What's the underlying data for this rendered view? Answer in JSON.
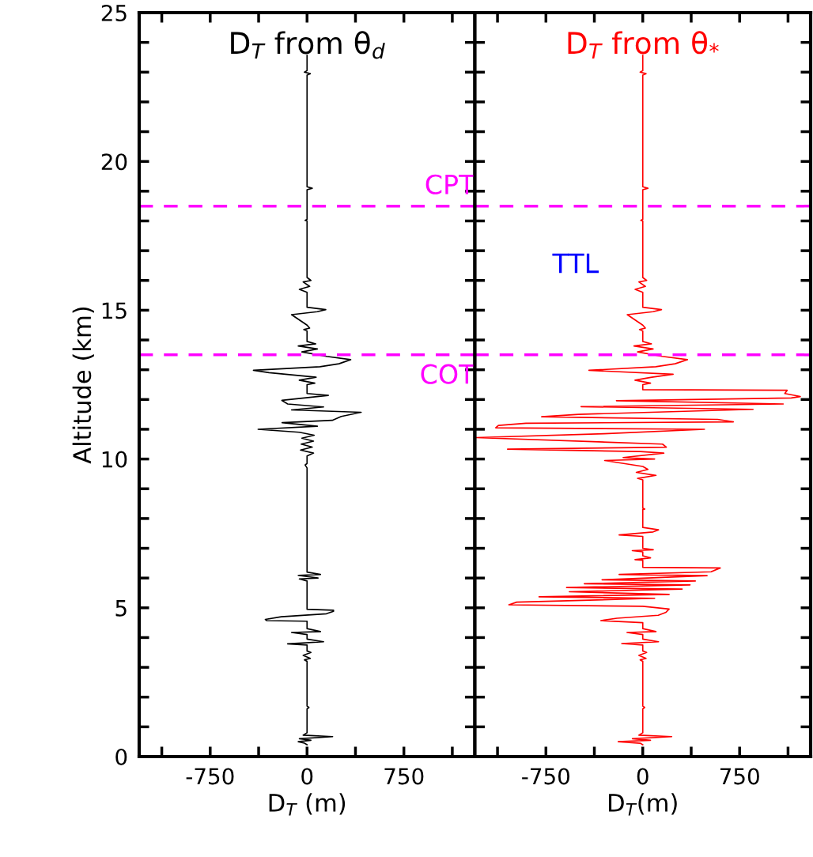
{
  "chart_data": [
    {
      "type": "line",
      "title": "D$_{T}$ from θ$_{d}$",
      "xlabel": "D$_{T}$ (m)",
      "ylabel": "Altitude (km)",
      "series": [
        {
          "color": "#000000",
          "x": [
            0,
            -20,
            -68,
            30,
            -59,
            198,
            -30,
            0,
            0,
            15,
            0,
            0,
            -20,
            25,
            -30,
            30,
            0,
            0,
            -150,
            128,
            0,
            0,
            -120,
            104,
            0,
            0,
            -311,
            -323,
            -200,
            150,
            205,
            205,
            0,
            0,
            -59,
            85,
            -68,
            104,
            0,
            0,
            -15,
            0,
            0,
            50,
            -50,
            40,
            -45,
            50,
            -40,
            55,
            -60,
            -379,
            80,
            -193,
            195,
            265,
            419,
            -120,
            128,
            -150,
            -195,
            165,
            0,
            0,
            60,
            -60,
            70,
            -294,
            -415,
            100,
            247,
            338,
            150,
            -40,
            80,
            -68,
            67,
            0,
            0,
            -25,
            20,
            0,
            -120,
            80,
            145,
            0,
            0,
            -59,
            20,
            -30,
            30,
            0,
            0,
            -15,
            0,
            0,
            40,
            0,
            0,
            25,
            -20,
            0,
            0
          ],
          "values": [
            0.4,
            0.45,
            0.5,
            0.55,
            0.6,
            0.67,
            0.72,
            0.8,
            1.6,
            1.65,
            1.7,
            3.2,
            3.25,
            3.3,
            3.4,
            3.5,
            3.55,
            3.75,
            3.79,
            3.86,
            3.95,
            4.1,
            4.17,
            4.2,
            4.3,
            4.55,
            4.57,
            4.61,
            4.7,
            4.8,
            4.88,
            4.92,
            4.95,
            5.9,
            5.97,
            6.0,
            6.09,
            6.12,
            6.2,
            9.7,
            9.8,
            9.85,
            10.1,
            10.2,
            10.3,
            10.4,
            10.5,
            10.6,
            10.7,
            10.8,
            10.9,
            11.0,
            11.1,
            11.22,
            11.3,
            11.43,
            11.57,
            11.65,
            11.75,
            11.85,
            11.97,
            12.14,
            12.2,
            12.5,
            12.55,
            12.65,
            12.75,
            12.9,
            12.98,
            13.1,
            13.2,
            13.34,
            13.45,
            13.6,
            13.7,
            13.8,
            13.87,
            13.95,
            14.3,
            14.35,
            14.4,
            14.5,
            14.85,
            14.95,
            15.02,
            15.1,
            15.6,
            15.7,
            15.8,
            15.95,
            16.0,
            16.1,
            18.0,
            18.02,
            18.05,
            19.05,
            19.1,
            19.15,
            22.9,
            22.95,
            23.0,
            23.05,
            23.56
          ]
        }
      ],
      "xlim": [
        -1300,
        1300
      ],
      "ylim": [
        0,
        25
      ],
      "xticks": [
        {
          "value": -1125,
          "label": null
        },
        -750,
        {
          "value": -375,
          "label": null
        },
        0,
        {
          "value": 375,
          "label": null
        },
        750,
        {
          "value": 1125,
          "label": null
        }
      ],
      "yticks": [
        0,
        {
          "value": 1,
          "label": null
        },
        {
          "value": 2,
          "label": null
        },
        {
          "value": 3,
          "label": null
        },
        {
          "value": 4,
          "label": null
        },
        5,
        {
          "value": 6,
          "label": null
        },
        {
          "value": 7,
          "label": null
        },
        {
          "value": 8,
          "label": null
        },
        {
          "value": 9,
          "label": null
        },
        10,
        {
          "value": 11,
          "label": null
        },
        {
          "value": 12,
          "label": null
        },
        {
          "value": 13,
          "label": null
        },
        {
          "value": 14,
          "label": null
        },
        15,
        {
          "value": 16,
          "label": null
        },
        {
          "value": 17,
          "label": null
        },
        {
          "value": 18,
          "label": null
        },
        {
          "value": 19,
          "label": null
        },
        20,
        {
          "value": 21,
          "label": null
        },
        {
          "value": 22,
          "label": null
        },
        {
          "value": 23,
          "label": null
        },
        {
          "value": 24,
          "label": null
        },
        25
      ],
      "ref_lines": [
        {
          "axis": "y",
          "value": 18.5,
          "color": "#ff00ff",
          "line_style": "dashed",
          "label": "CPT"
        },
        {
          "axis": "y",
          "value": 13.5,
          "color": "#ff00ff",
          "line_style": "dashed",
          "label": "COT"
        }
      ],
      "grid": false,
      "legend": false
    },
    {
      "type": "line",
      "title": "D$_{T}$ from θ$_{*}$",
      "xlabel": "D$_{T}$(m)",
      "series": [
        {
          "color": "#ff0000",
          "x": [
            0,
            -20,
            -190,
            60,
            -80,
            224,
            -30,
            0,
            0,
            15,
            0,
            0,
            -20,
            25,
            -30,
            30,
            0,
            0,
            -163,
            122,
            0,
            0,
            -122,
            102,
            0,
            0,
            -325,
            -200,
            120,
            180,
            204,
            0,
            -1037,
            -976,
            92,
            -803,
            204,
            -569,
            305,
            -590,
            366,
            -453,
            407,
            -315,
            498,
            -183,
            529,
            600,
            0,
            0,
            -60,
            60,
            0,
            0,
            -81,
            81,
            0,
            0,
            -183,
            80,
            122,
            0,
            0,
            15,
            0,
            0,
            -40,
            102,
            -50,
            40,
            0,
            -295,
            92,
            -152,
            163,
            -20,
            -1047,
            183,
            153,
            -1291,
            -300,
            478,
            -1139,
            -1118,
            -905,
            702,
            580,
            -783,
            -498,
            854,
            -478,
            1088,
            -204,
            1150,
            1220,
            1100,
            1118,
            0,
            0,
            60,
            -60,
            70,
            235,
            -417,
            100,
            250,
            346,
            150,
            -40,
            80,
            -68,
            67,
            0,
            0,
            -25,
            20,
            0,
            -120,
            80,
            145,
            0,
            0,
            -59,
            20,
            -30,
            30,
            0,
            0,
            -15,
            0,
            0,
            40,
            0,
            0,
            25,
            -20,
            0,
            0
          ],
          "values": [
            0.4,
            0.45,
            0.5,
            0.55,
            0.6,
            0.67,
            0.72,
            0.8,
            1.6,
            1.65,
            1.7,
            3.2,
            3.25,
            3.3,
            3.4,
            3.5,
            3.55,
            3.75,
            3.8,
            3.86,
            3.95,
            4.1,
            4.17,
            4.2,
            4.3,
            4.5,
            4.57,
            4.65,
            4.75,
            4.85,
            4.96,
            5.05,
            5.1,
            5.19,
            5.32,
            5.37,
            5.45,
            5.54,
            5.63,
            5.68,
            5.77,
            5.81,
            5.9,
            5.94,
            6.08,
            6.12,
            6.21,
            6.34,
            6.36,
            6.6,
            6.62,
            6.68,
            6.75,
            6.88,
            6.92,
            6.95,
            7.0,
            7.4,
            7.45,
            7.55,
            7.62,
            7.7,
            8.3,
            8.32,
            8.35,
            9.3,
            9.35,
            9.45,
            9.55,
            9.65,
            9.75,
            9.95,
            10.0,
            10.05,
            10.2,
            10.25,
            10.33,
            10.4,
            10.5,
            10.72,
            10.85,
            11.0,
            11.05,
            11.13,
            11.2,
            11.25,
            11.33,
            11.42,
            11.5,
            11.67,
            11.76,
            11.85,
            11.96,
            12.05,
            12.1,
            12.2,
            12.31,
            12.33,
            12.5,
            12.55,
            12.65,
            12.75,
            12.85,
            12.98,
            13.1,
            13.2,
            13.34,
            13.45,
            13.6,
            13.7,
            13.8,
            13.87,
            13.95,
            14.3,
            14.35,
            14.4,
            14.5,
            14.85,
            14.95,
            15.02,
            15.1,
            15.6,
            15.7,
            15.8,
            15.95,
            16.0,
            16.1,
            18.0,
            18.02,
            18.05,
            19.05,
            19.1,
            19.15,
            22.9,
            22.95,
            23.0,
            23.05,
            23.56
          ]
        }
      ],
      "xlim": [
        -1300,
        1300
      ],
      "ylim": [
        0,
        25
      ],
      "xticks": [
        {
          "value": -1125,
          "label": null
        },
        -750,
        {
          "value": -375,
          "label": null
        },
        0,
        {
          "value": 375,
          "label": null
        },
        750,
        {
          "value": 1125,
          "label": null
        }
      ],
      "yticks": [
        0,
        {
          "value": 1,
          "label": null
        },
        {
          "value": 2,
          "label": null
        },
        {
          "value": 3,
          "label": null
        },
        {
          "value": 4,
          "label": null
        },
        5,
        {
          "value": 6,
          "label": null
        },
        {
          "value": 7,
          "label": null
        },
        {
          "value": 8,
          "label": null
        },
        {
          "value": 9,
          "label": null
        },
        10,
        {
          "value": 11,
          "label": null
        },
        {
          "value": 12,
          "label": null
        },
        {
          "value": 13,
          "label": null
        },
        {
          "value": 14,
          "label": null
        },
        15,
        {
          "value": 16,
          "label": null
        },
        {
          "value": 17,
          "label": null
        },
        {
          "value": 18,
          "label": null
        },
        {
          "value": 19,
          "label": null
        },
        20,
        {
          "value": 21,
          "label": null
        },
        {
          "value": 22,
          "label": null
        },
        {
          "value": 23,
          "label": null
        },
        {
          "value": 24,
          "label": null
        },
        25
      ],
      "tick_labels": "x",
      "ref_lines": [
        {
          "axis": "y",
          "value": 18.5,
          "color": "#ff00ff",
          "line_style": "dashed"
        },
        {
          "axis": "y",
          "value": 13.5,
          "color": "#ff00ff",
          "line_style": "dashed"
        }
      ],
      "annotations": [
        "TTL"
      ],
      "grid": false,
      "legend": false
    }
  ]
}
